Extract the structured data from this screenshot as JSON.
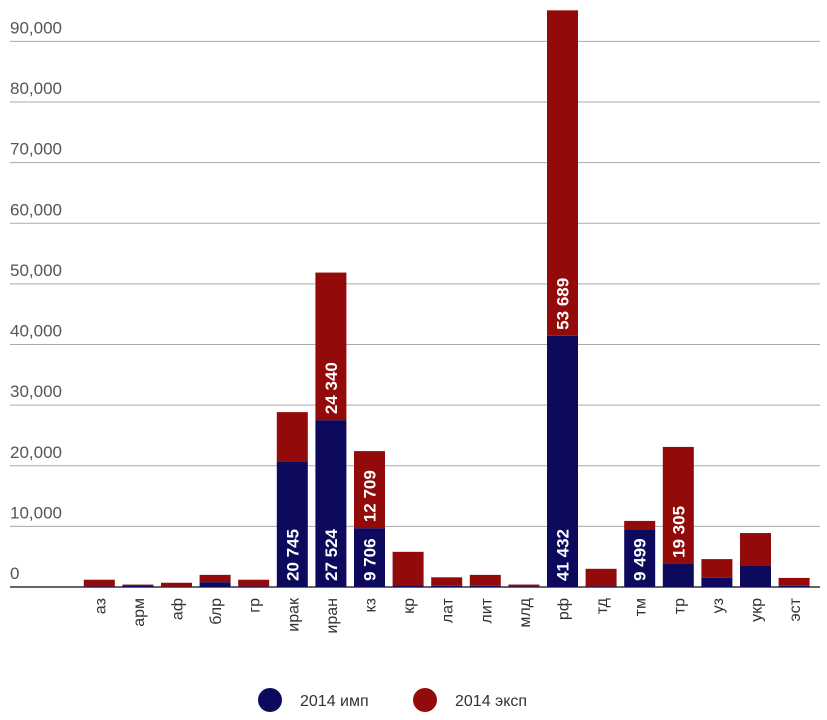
{
  "chart_data": {
    "type": "stacked_bar",
    "categories": [
      "аз",
      "арм",
      "аф",
      "блр",
      "гр",
      "ирак",
      "иран",
      "кз",
      "кр",
      "лат",
      "лит",
      "млд",
      "рф",
      "тд",
      "тм",
      "тр",
      "уз",
      "укр",
      "эст"
    ],
    "series": [
      {
        "name": "2014 имп",
        "color": "#0d0a5e",
        "values": [
          100,
          300,
          50,
          800,
          100,
          20745,
          27524,
          9706,
          300,
          200,
          200,
          100,
          41432,
          100,
          9499,
          3800,
          1500,
          3600,
          200
        ],
        "value_labels": [
          null,
          null,
          null,
          null,
          null,
          "20 745",
          "27 524",
          "9 706",
          null,
          null,
          null,
          null,
          "41 432",
          null,
          "9 499",
          null,
          null,
          null,
          null
        ]
      },
      {
        "name": "2014 эксп",
        "color": "#920a0a",
        "values": [
          1100,
          100,
          650,
          1200,
          1100,
          8100,
          24340,
          12709,
          5500,
          1400,
          1800,
          300,
          53689,
          2900,
          1400,
          19305,
          3100,
          5300,
          1300
        ],
        "value_labels": [
          null,
          null,
          null,
          null,
          null,
          null,
          "24 340",
          "12 709",
          null,
          null,
          null,
          null,
          "53 689",
          null,
          null,
          "19 305",
          null,
          null,
          null
        ]
      }
    ],
    "ylim": [
      0,
      96000
    ],
    "yticks": [
      0,
      {
        "value": 10000,
        "label": "10,000"
      },
      {
        "value": 20000,
        "label": "20,000"
      },
      {
        "value": 30000,
        "label": "30,000"
      },
      {
        "value": 40000,
        "label": "40,000"
      },
      {
        "value": 50000,
        "label": "50,000"
      },
      {
        "value": 60000,
        "label": "60,000"
      },
      {
        "value": 70000,
        "label": "70,000"
      },
      {
        "value": 80000,
        "label": "80,000"
      },
      {
        "value": 90000,
        "label": "90,000"
      }
    ],
    "grid": true
  }
}
